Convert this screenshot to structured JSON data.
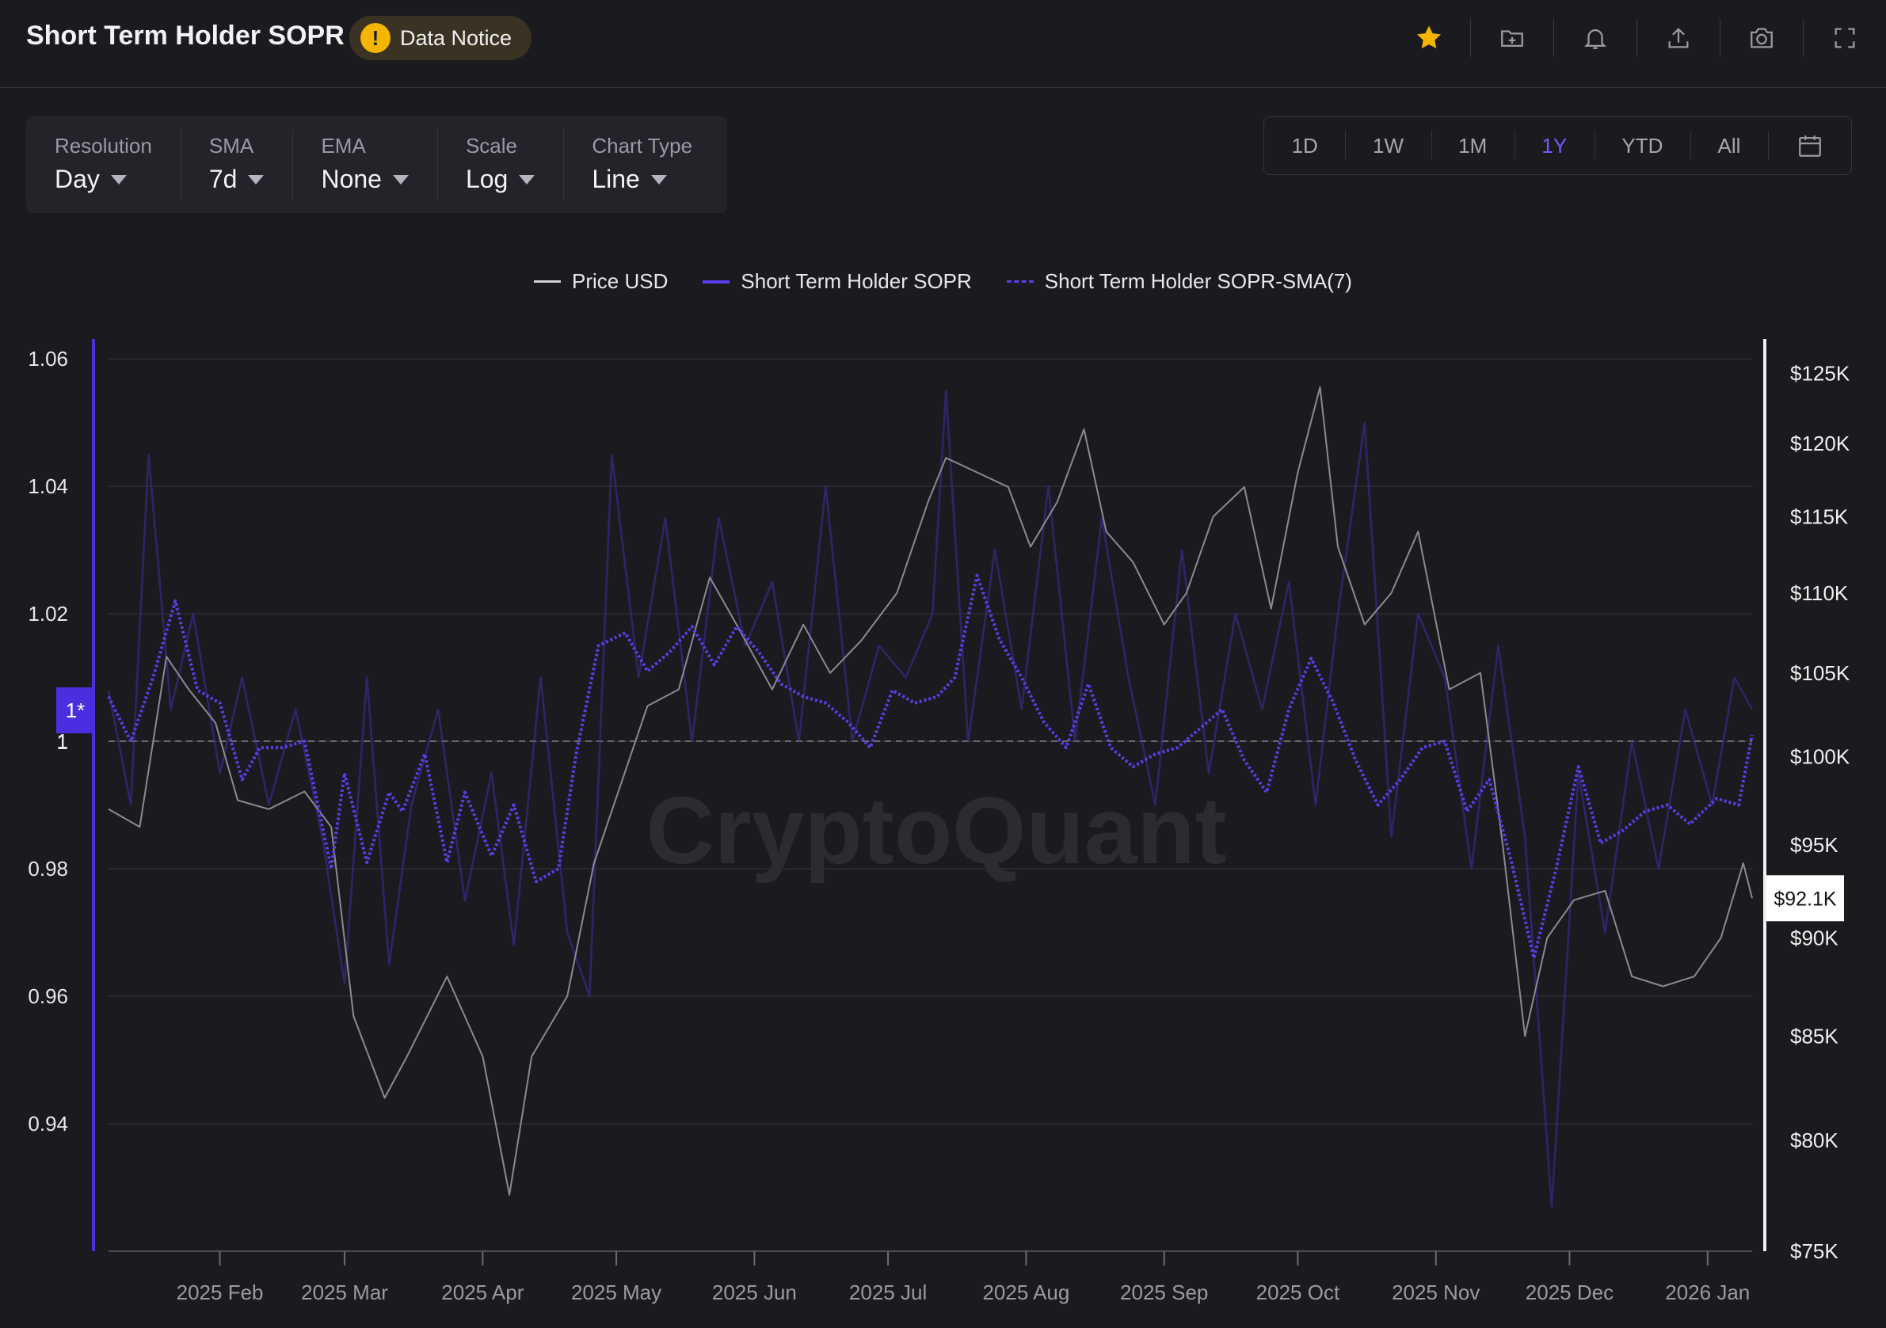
{
  "header": {
    "title": "Short Term Holder SOPR",
    "notice_label": "Data Notice",
    "icons": [
      "star-icon",
      "folder-plus-icon",
      "bell-icon",
      "upload-icon",
      "camera-icon",
      "fullscreen-icon"
    ],
    "star_color": "#f4b400"
  },
  "controls": [
    {
      "label": "Resolution",
      "value": "Day"
    },
    {
      "label": "SMA",
      "value": "7d"
    },
    {
      "label": "EMA",
      "value": "None"
    },
    {
      "label": "Scale",
      "value": "Log"
    },
    {
      "label": "Chart Type",
      "value": "Line"
    }
  ],
  "ranges": {
    "items": [
      "1D",
      "1W",
      "1M",
      "1Y",
      "YTD",
      "All"
    ],
    "active": "1Y",
    "calendar_icon": "calendar-icon"
  },
  "watermark": "CryptoQuant",
  "colors": {
    "accent": "#6f5cff",
    "sopr": "#3f2fa8",
    "sma": "#5b3dea",
    "price": "#8a8a92",
    "background": "#1b1b1f"
  },
  "chart_data": {
    "type": "line",
    "title": "Short Term Holder SOPR",
    "legend": [
      "Price USD",
      "Short Term Holder SOPR",
      "Short Term Holder SOPR-SMA(7)"
    ],
    "legend_position": "top-center",
    "grid": true,
    "x_ticks": [
      "2025 Feb",
      "2025 Mar",
      "2025 Apr",
      "2025 May",
      "2025 Jun",
      "2025 Jul",
      "2025 Aug",
      "2025 Sep",
      "2025 Oct",
      "2025 Nov",
      "2025 Dec",
      "2026 Jan"
    ],
    "x_range": [
      "2025-01-07",
      "2026-01-11"
    ],
    "y_left": {
      "ticks": [
        "1.06",
        "1.04",
        "1.02",
        "1",
        "0.98",
        "0.96",
        "0.94"
      ],
      "range": [
        0.92,
        1.062
      ],
      "reference_line": 1,
      "reference_label": "1*"
    },
    "y_right": {
      "scale": "log",
      "ticks": [
        "$125K",
        "$120K",
        "$115K",
        "$110K",
        "$105K",
        "$100K",
        "$95K",
        "$90K",
        "$85K",
        "$80K",
        "$75K"
      ],
      "range": [
        75000,
        127000
      ],
      "current_label": "$92.1K",
      "current_value": 92100
    },
    "series": [
      {
        "name": "Price USD",
        "axis": "right",
        "x": [
          "2025-01-07",
          "2025-01-14",
          "2025-01-20",
          "2025-01-25",
          "2025-01-31",
          "2025-02-05",
          "2025-02-12",
          "2025-02-20",
          "2025-02-26",
          "2025-03-03",
          "2025-03-10",
          "2025-03-15",
          "2025-03-24",
          "2025-04-01",
          "2025-04-07",
          "2025-04-12",
          "2025-04-20",
          "2025-04-26",
          "2025-05-08",
          "2025-05-15",
          "2025-05-22",
          "2025-05-28",
          "2025-06-05",
          "2025-06-12",
          "2025-06-18",
          "2025-06-25",
          "2025-07-03",
          "2025-07-10",
          "2025-07-14",
          "2025-07-21",
          "2025-07-28",
          "2025-08-02",
          "2025-08-08",
          "2025-08-14",
          "2025-08-19",
          "2025-08-25",
          "2025-09-01",
          "2025-09-06",
          "2025-09-12",
          "2025-09-19",
          "2025-09-25",
          "2025-10-01",
          "2025-10-06",
          "2025-10-10",
          "2025-10-16",
          "2025-10-22",
          "2025-10-28",
          "2025-11-04",
          "2025-11-11",
          "2025-11-16",
          "2025-11-21",
          "2025-11-26",
          "2025-12-02",
          "2025-12-09",
          "2025-12-15",
          "2025-12-22",
          "2025-12-29",
          "2026-01-04",
          "2026-01-09",
          "2026-01-11"
        ],
        "values": [
          97000,
          96000,
          106000,
          104000,
          102000,
          97500,
          97000,
          98000,
          96000,
          86000,
          82000,
          84000,
          88000,
          84000,
          77500,
          84000,
          87000,
          94000,
          103000,
          104000,
          111000,
          108000,
          104000,
          108000,
          105000,
          107000,
          110000,
          116000,
          119000,
          118000,
          117000,
          113000,
          116000,
          121000,
          114000,
          112000,
          108000,
          110000,
          115000,
          117000,
          109000,
          118000,
          124000,
          113000,
          108000,
          110000,
          114000,
          104000,
          105000,
          95000,
          85000,
          90000,
          92000,
          92500,
          88000,
          87500,
          88000,
          90000,
          94000,
          92100
        ]
      },
      {
        "name": "Short Term Holder SOPR",
        "axis": "left",
        "x": [
          "2025-01-07",
          "2025-01-12",
          "2025-01-16",
          "2025-01-21",
          "2025-01-26",
          "2025-02-01",
          "2025-02-06",
          "2025-02-12",
          "2025-02-18",
          "2025-02-24",
          "2025-03-01",
          "2025-03-06",
          "2025-03-11",
          "2025-03-16",
          "2025-03-22",
          "2025-03-28",
          "2025-04-03",
          "2025-04-08",
          "2025-04-14",
          "2025-04-20",
          "2025-04-25",
          "2025-04-30",
          "2025-05-06",
          "2025-05-12",
          "2025-05-18",
          "2025-05-24",
          "2025-05-30",
          "2025-06-05",
          "2025-06-11",
          "2025-06-17",
          "2025-06-23",
          "2025-06-29",
          "2025-07-05",
          "2025-07-11",
          "2025-07-14",
          "2025-07-19",
          "2025-07-25",
          "2025-07-31",
          "2025-08-06",
          "2025-08-12",
          "2025-08-18",
          "2025-08-24",
          "2025-08-30",
          "2025-09-05",
          "2025-09-11",
          "2025-09-17",
          "2025-09-23",
          "2025-09-29",
          "2025-10-05",
          "2025-10-10",
          "2025-10-16",
          "2025-10-22",
          "2025-10-28",
          "2025-11-03",
          "2025-11-09",
          "2025-11-15",
          "2025-11-21",
          "2025-11-27",
          "2025-12-03",
          "2025-12-09",
          "2025-12-15",
          "2025-12-21",
          "2025-12-27",
          "2026-01-02",
          "2026-01-07",
          "2026-01-11"
        ],
        "values": [
          1.008,
          0.99,
          1.045,
          1.005,
          1.02,
          0.995,
          1.01,
          0.99,
          1.005,
          0.985,
          0.962,
          1.01,
          0.965,
          0.99,
          1.005,
          0.975,
          0.995,
          0.968,
          1.01,
          0.97,
          0.96,
          1.045,
          1.01,
          1.035,
          1.0,
          1.035,
          1.015,
          1.025,
          1.0,
          1.04,
          1.0,
          1.015,
          1.01,
          1.02,
          1.055,
          1.0,
          1.03,
          1.005,
          1.04,
          1.0,
          1.035,
          1.01,
          0.99,
          1.03,
          0.995,
          1.02,
          1.005,
          1.025,
          0.99,
          1.02,
          1.05,
          0.985,
          1.02,
          1.01,
          0.98,
          1.015,
          0.985,
          0.927,
          0.995,
          0.97,
          1.0,
          0.98,
          1.005,
          0.99,
          1.01,
          1.005
        ]
      },
      {
        "name": "Short Term Holder SOPR-SMA(7)",
        "axis": "left",
        "x": [
          "2025-01-07",
          "2025-01-12",
          "2025-01-17",
          "2025-01-22",
          "2025-01-27",
          "2025-02-01",
          "2025-02-06",
          "2025-02-10",
          "2025-02-15",
          "2025-02-20",
          "2025-02-26",
          "2025-03-01",
          "2025-03-06",
          "2025-03-11",
          "2025-03-14",
          "2025-03-19",
          "2025-03-24",
          "2025-03-28",
          "2025-04-03",
          "2025-04-08",
          "2025-04-13",
          "2025-04-18",
          "2025-04-22",
          "2025-04-27",
          "2025-05-03",
          "2025-05-08",
          "2025-05-13",
          "2025-05-18",
          "2025-05-23",
          "2025-05-28",
          "2025-06-02",
          "2025-06-07",
          "2025-06-12",
          "2025-06-17",
          "2025-06-22",
          "2025-06-27",
          "2025-07-02",
          "2025-07-07",
          "2025-07-12",
          "2025-07-16",
          "2025-07-21",
          "2025-07-26",
          "2025-07-31",
          "2025-08-05",
          "2025-08-10",
          "2025-08-15",
          "2025-08-20",
          "2025-08-25",
          "2025-08-30",
          "2025-09-04",
          "2025-09-09",
          "2025-09-14",
          "2025-09-19",
          "2025-09-24",
          "2025-09-29",
          "2025-10-04",
          "2025-10-09",
          "2025-10-14",
          "2025-10-19",
          "2025-10-24",
          "2025-10-29",
          "2025-11-03",
          "2025-11-08",
          "2025-11-13",
          "2025-11-18",
          "2025-11-23",
          "2025-11-28",
          "2025-12-03",
          "2025-12-08",
          "2025-12-13",
          "2025-12-18",
          "2025-12-23",
          "2025-12-28",
          "2026-01-03",
          "2026-01-08",
          "2026-01-11"
        ],
        "values": [
          1.007,
          1.0,
          1.01,
          1.022,
          1.008,
          1.006,
          0.994,
          0.999,
          0.999,
          1.0,
          0.98,
          0.995,
          0.981,
          0.992,
          0.989,
          0.998,
          0.981,
          0.992,
          0.982,
          0.99,
          0.978,
          0.98,
          0.998,
          1.015,
          1.017,
          1.011,
          1.014,
          1.018,
          1.012,
          1.018,
          1.014,
          1.009,
          1.007,
          1.006,
          1.003,
          0.999,
          1.008,
          1.006,
          1.007,
          1.01,
          1.026,
          1.016,
          1.01,
          1.003,
          0.999,
          1.009,
          0.999,
          0.996,
          0.998,
          0.999,
          1.002,
          1.005,
          0.997,
          0.992,
          1.005,
          1.013,
          1.006,
          0.997,
          0.99,
          0.994,
          0.999,
          1.0,
          0.989,
          0.994,
          0.981,
          0.966,
          0.98,
          0.996,
          0.984,
          0.986,
          0.989,
          0.99,
          0.987,
          0.991,
          0.99,
          1.001
        ]
      }
    ]
  }
}
